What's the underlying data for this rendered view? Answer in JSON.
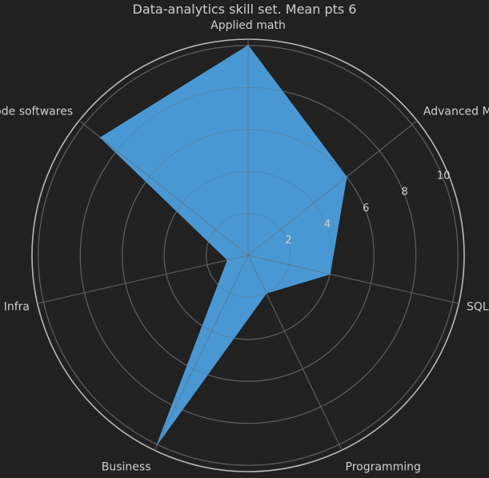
{
  "chart_data": {
    "type": "radar",
    "title": "Data-analytics skill set. Mean pts 6",
    "categories": [
      "Applied math",
      "Advanced Math",
      "SQL",
      "Programming",
      "Business",
      "Infra",
      "No/Low code softwares"
    ],
    "series": [
      {
        "values": [
          10,
          6,
          4,
          2,
          10,
          1,
          9
        ]
      }
    ],
    "rlim": [
      0,
      10.3
    ],
    "r_ticks": [
      2,
      4,
      6,
      8,
      10
    ],
    "r_tick_labels": [
      "2",
      "4",
      "6",
      "8",
      "10"
    ],
    "grid": true,
    "colors": {
      "fill": "#4a98d3",
      "grid": "#5b5b5b",
      "outer_ring": "#b9b9b9",
      "background": "#212121",
      "text": "#cfcfcf"
    }
  }
}
